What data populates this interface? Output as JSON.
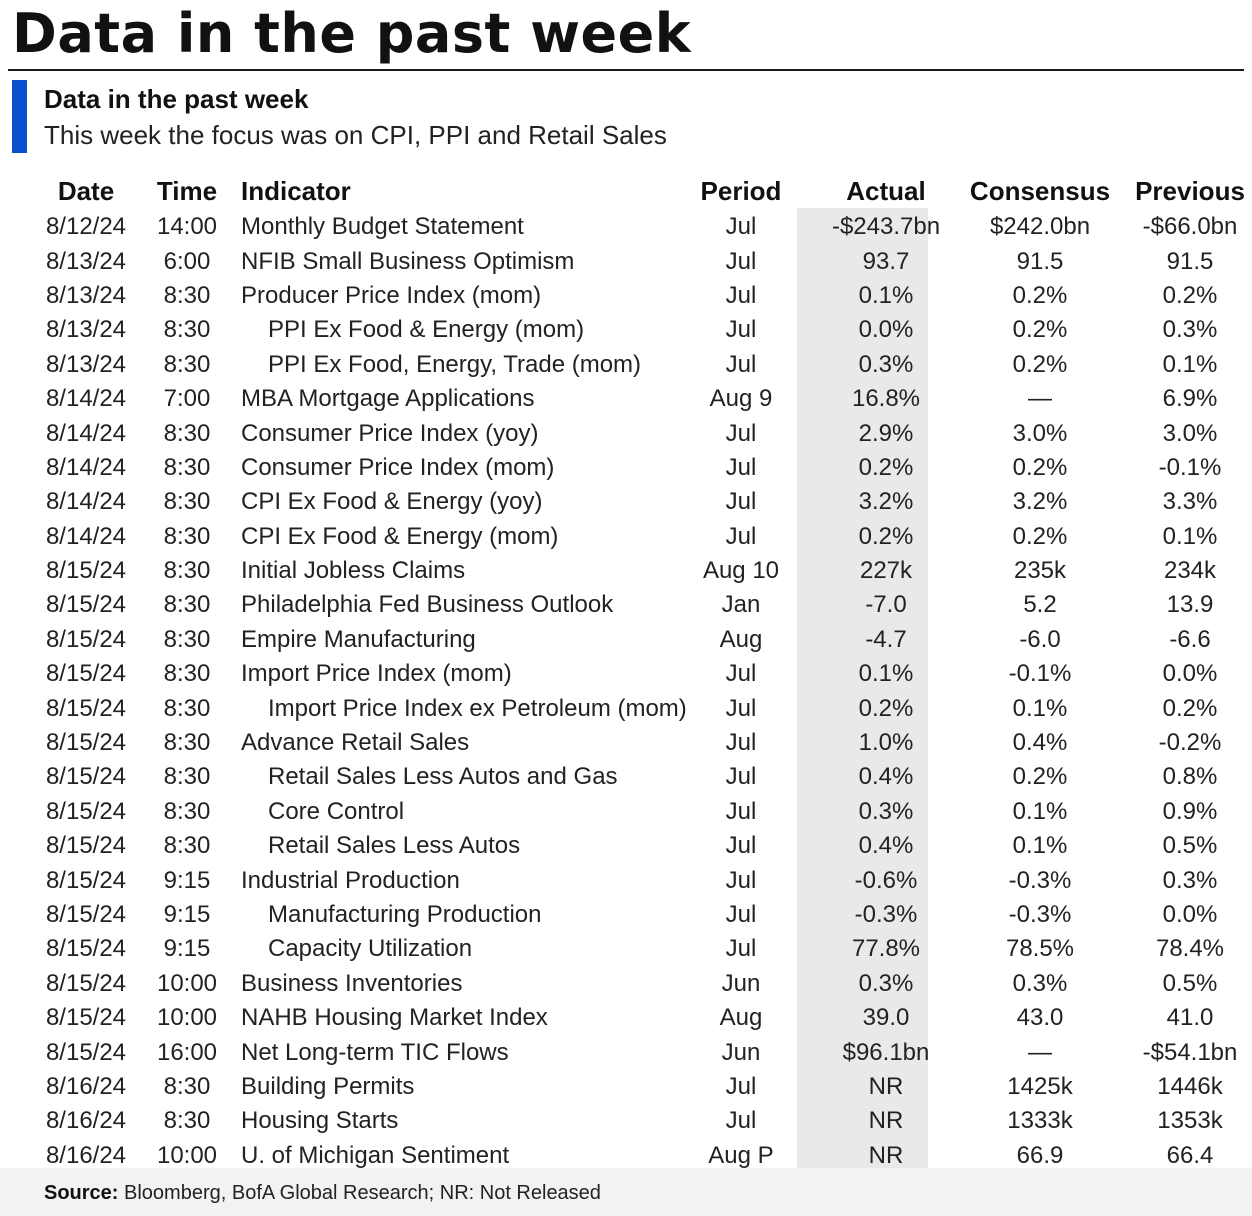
{
  "header": {
    "title": "Data in the past week",
    "subtitle": "Data in the past week",
    "caption": "This week the focus was on CPI, PPI and Retail Sales"
  },
  "colors": {
    "accent_bar": "#0a4fd0",
    "actual_column_shade": "#e9e9e9",
    "bottom_band": "#f2f2f2",
    "text": "#1a1a1a"
  },
  "table": {
    "columns": [
      "Date",
      "Time",
      "Indicator",
      "Period",
      "Actual",
      "Consensus",
      "Previous"
    ],
    "rows": [
      {
        "date": "8/12/24",
        "time": "14:00",
        "indicator": "Monthly Budget Statement",
        "indent": false,
        "period": "Jul",
        "actual": "-$243.7bn",
        "consensus": "$242.0bn",
        "previous": "-$66.0bn"
      },
      {
        "date": "8/13/24",
        "time": "6:00",
        "indicator": "NFIB Small Business Optimism",
        "indent": false,
        "period": "Jul",
        "actual": "93.7",
        "consensus": "91.5",
        "previous": "91.5"
      },
      {
        "date": "8/13/24",
        "time": "8:30",
        "indicator": "Producer Price Index (mom)",
        "indent": false,
        "period": "Jul",
        "actual": "0.1%",
        "consensus": "0.2%",
        "previous": "0.2%"
      },
      {
        "date": "8/13/24",
        "time": "8:30",
        "indicator": "PPI Ex Food & Energy (mom)",
        "indent": true,
        "period": "Jul",
        "actual": "0.0%",
        "consensus": "0.2%",
        "previous": "0.3%"
      },
      {
        "date": "8/13/24",
        "time": "8:30",
        "indicator": "PPI Ex Food, Energy, Trade (mom)",
        "indent": true,
        "period": "Jul",
        "actual": "0.3%",
        "consensus": "0.2%",
        "previous": "0.1%"
      },
      {
        "date": "8/14/24",
        "time": "7:00",
        "indicator": "MBA Mortgage Applications",
        "indent": false,
        "period": "Aug 9",
        "actual": "16.8%",
        "consensus": "—",
        "previous": "6.9%"
      },
      {
        "date": "8/14/24",
        "time": "8:30",
        "indicator": "Consumer Price Index (yoy)",
        "indent": false,
        "period": "Jul",
        "actual": "2.9%",
        "consensus": "3.0%",
        "previous": "3.0%"
      },
      {
        "date": "8/14/24",
        "time": "8:30",
        "indicator": "Consumer Price Index (mom)",
        "indent": false,
        "period": "Jul",
        "actual": "0.2%",
        "consensus": "0.2%",
        "previous": "-0.1%"
      },
      {
        "date": "8/14/24",
        "time": "8:30",
        "indicator": "CPI Ex Food & Energy (yoy)",
        "indent": false,
        "period": "Jul",
        "actual": "3.2%",
        "consensus": "3.2%",
        "previous": "3.3%"
      },
      {
        "date": "8/14/24",
        "time": "8:30",
        "indicator": "CPI Ex Food & Energy (mom)",
        "indent": false,
        "period": "Jul",
        "actual": "0.2%",
        "consensus": "0.2%",
        "previous": "0.1%"
      },
      {
        "date": "8/15/24",
        "time": "8:30",
        "indicator": "Initial Jobless Claims",
        "indent": false,
        "period": "Aug 10",
        "actual": "227k",
        "consensus": "235k",
        "previous": "234k"
      },
      {
        "date": "8/15/24",
        "time": "8:30",
        "indicator": "Philadelphia Fed Business Outlook",
        "indent": false,
        "period": "Jan",
        "actual": "-7.0",
        "consensus": "5.2",
        "previous": "13.9"
      },
      {
        "date": "8/15/24",
        "time": "8:30",
        "indicator": "Empire Manufacturing",
        "indent": false,
        "period": "Aug",
        "actual": "-4.7",
        "consensus": "-6.0",
        "previous": "-6.6"
      },
      {
        "date": "8/15/24",
        "time": "8:30",
        "indicator": "Import Price Index (mom)",
        "indent": false,
        "period": "Jul",
        "actual": "0.1%",
        "consensus": "-0.1%",
        "previous": "0.0%"
      },
      {
        "date": "8/15/24",
        "time": "8:30",
        "indicator": "Import Price Index ex Petroleum (mom)",
        "indent": true,
        "period": "Jul",
        "actual": "0.2%",
        "consensus": "0.1%",
        "previous": "0.2%"
      },
      {
        "date": "8/15/24",
        "time": "8:30",
        "indicator": "Advance Retail Sales",
        "indent": false,
        "period": "Jul",
        "actual": "1.0%",
        "consensus": "0.4%",
        "previous": "-0.2%"
      },
      {
        "date": "8/15/24",
        "time": "8:30",
        "indicator": "Retail Sales Less Autos and Gas",
        "indent": true,
        "period": "Jul",
        "actual": "0.4%",
        "consensus": "0.2%",
        "previous": "0.8%"
      },
      {
        "date": "8/15/24",
        "time": "8:30",
        "indicator": "Core Control",
        "indent": true,
        "period": "Jul",
        "actual": "0.3%",
        "consensus": "0.1%",
        "previous": "0.9%"
      },
      {
        "date": "8/15/24",
        "time": "8:30",
        "indicator": "Retail Sales Less Autos",
        "indent": true,
        "period": "Jul",
        "actual": "0.4%",
        "consensus": "0.1%",
        "previous": "0.5%"
      },
      {
        "date": "8/15/24",
        "time": "9:15",
        "indicator": "Industrial Production",
        "indent": false,
        "period": "Jul",
        "actual": "-0.6%",
        "consensus": "-0.3%",
        "previous": "0.3%"
      },
      {
        "date": "8/15/24",
        "time": "9:15",
        "indicator": "Manufacturing Production",
        "indent": true,
        "period": "Jul",
        "actual": "-0.3%",
        "consensus": "-0.3%",
        "previous": "0.0%"
      },
      {
        "date": "8/15/24",
        "time": "9:15",
        "indicator": "Capacity Utilization",
        "indent": true,
        "period": "Jul",
        "actual": "77.8%",
        "consensus": "78.5%",
        "previous": "78.4%"
      },
      {
        "date": "8/15/24",
        "time": "10:00",
        "indicator": "Business Inventories",
        "indent": false,
        "period": "Jun",
        "actual": "0.3%",
        "consensus": "0.3%",
        "previous": "0.5%"
      },
      {
        "date": "8/15/24",
        "time": "10:00",
        "indicator": "NAHB Housing Market Index",
        "indent": false,
        "period": "Aug",
        "actual": "39.0",
        "consensus": "43.0",
        "previous": "41.0"
      },
      {
        "date": "8/15/24",
        "time": "16:00",
        "indicator": "Net Long-term TIC Flows",
        "indent": false,
        "period": "Jun",
        "actual": "$96.1bn",
        "consensus": "—",
        "previous": "-$54.1bn"
      },
      {
        "date": "8/16/24",
        "time": "8:30",
        "indicator": "Building Permits",
        "indent": false,
        "period": "Jul",
        "actual": "NR",
        "consensus": "1425k",
        "previous": "1446k"
      },
      {
        "date": "8/16/24",
        "time": "8:30",
        "indicator": "Housing Starts",
        "indent": false,
        "period": "Jul",
        "actual": "NR",
        "consensus": "1333k",
        "previous": "1353k"
      },
      {
        "date": "8/16/24",
        "time": "10:00",
        "indicator": "U. of Michigan Sentiment",
        "indent": false,
        "period": "Aug P",
        "actual": "NR",
        "consensus": "66.9",
        "previous": "66.4"
      }
    ]
  },
  "footer": {
    "source_label": "Source:",
    "source_text": " Bloomberg, BofA Global Research; NR: Not Released"
  }
}
